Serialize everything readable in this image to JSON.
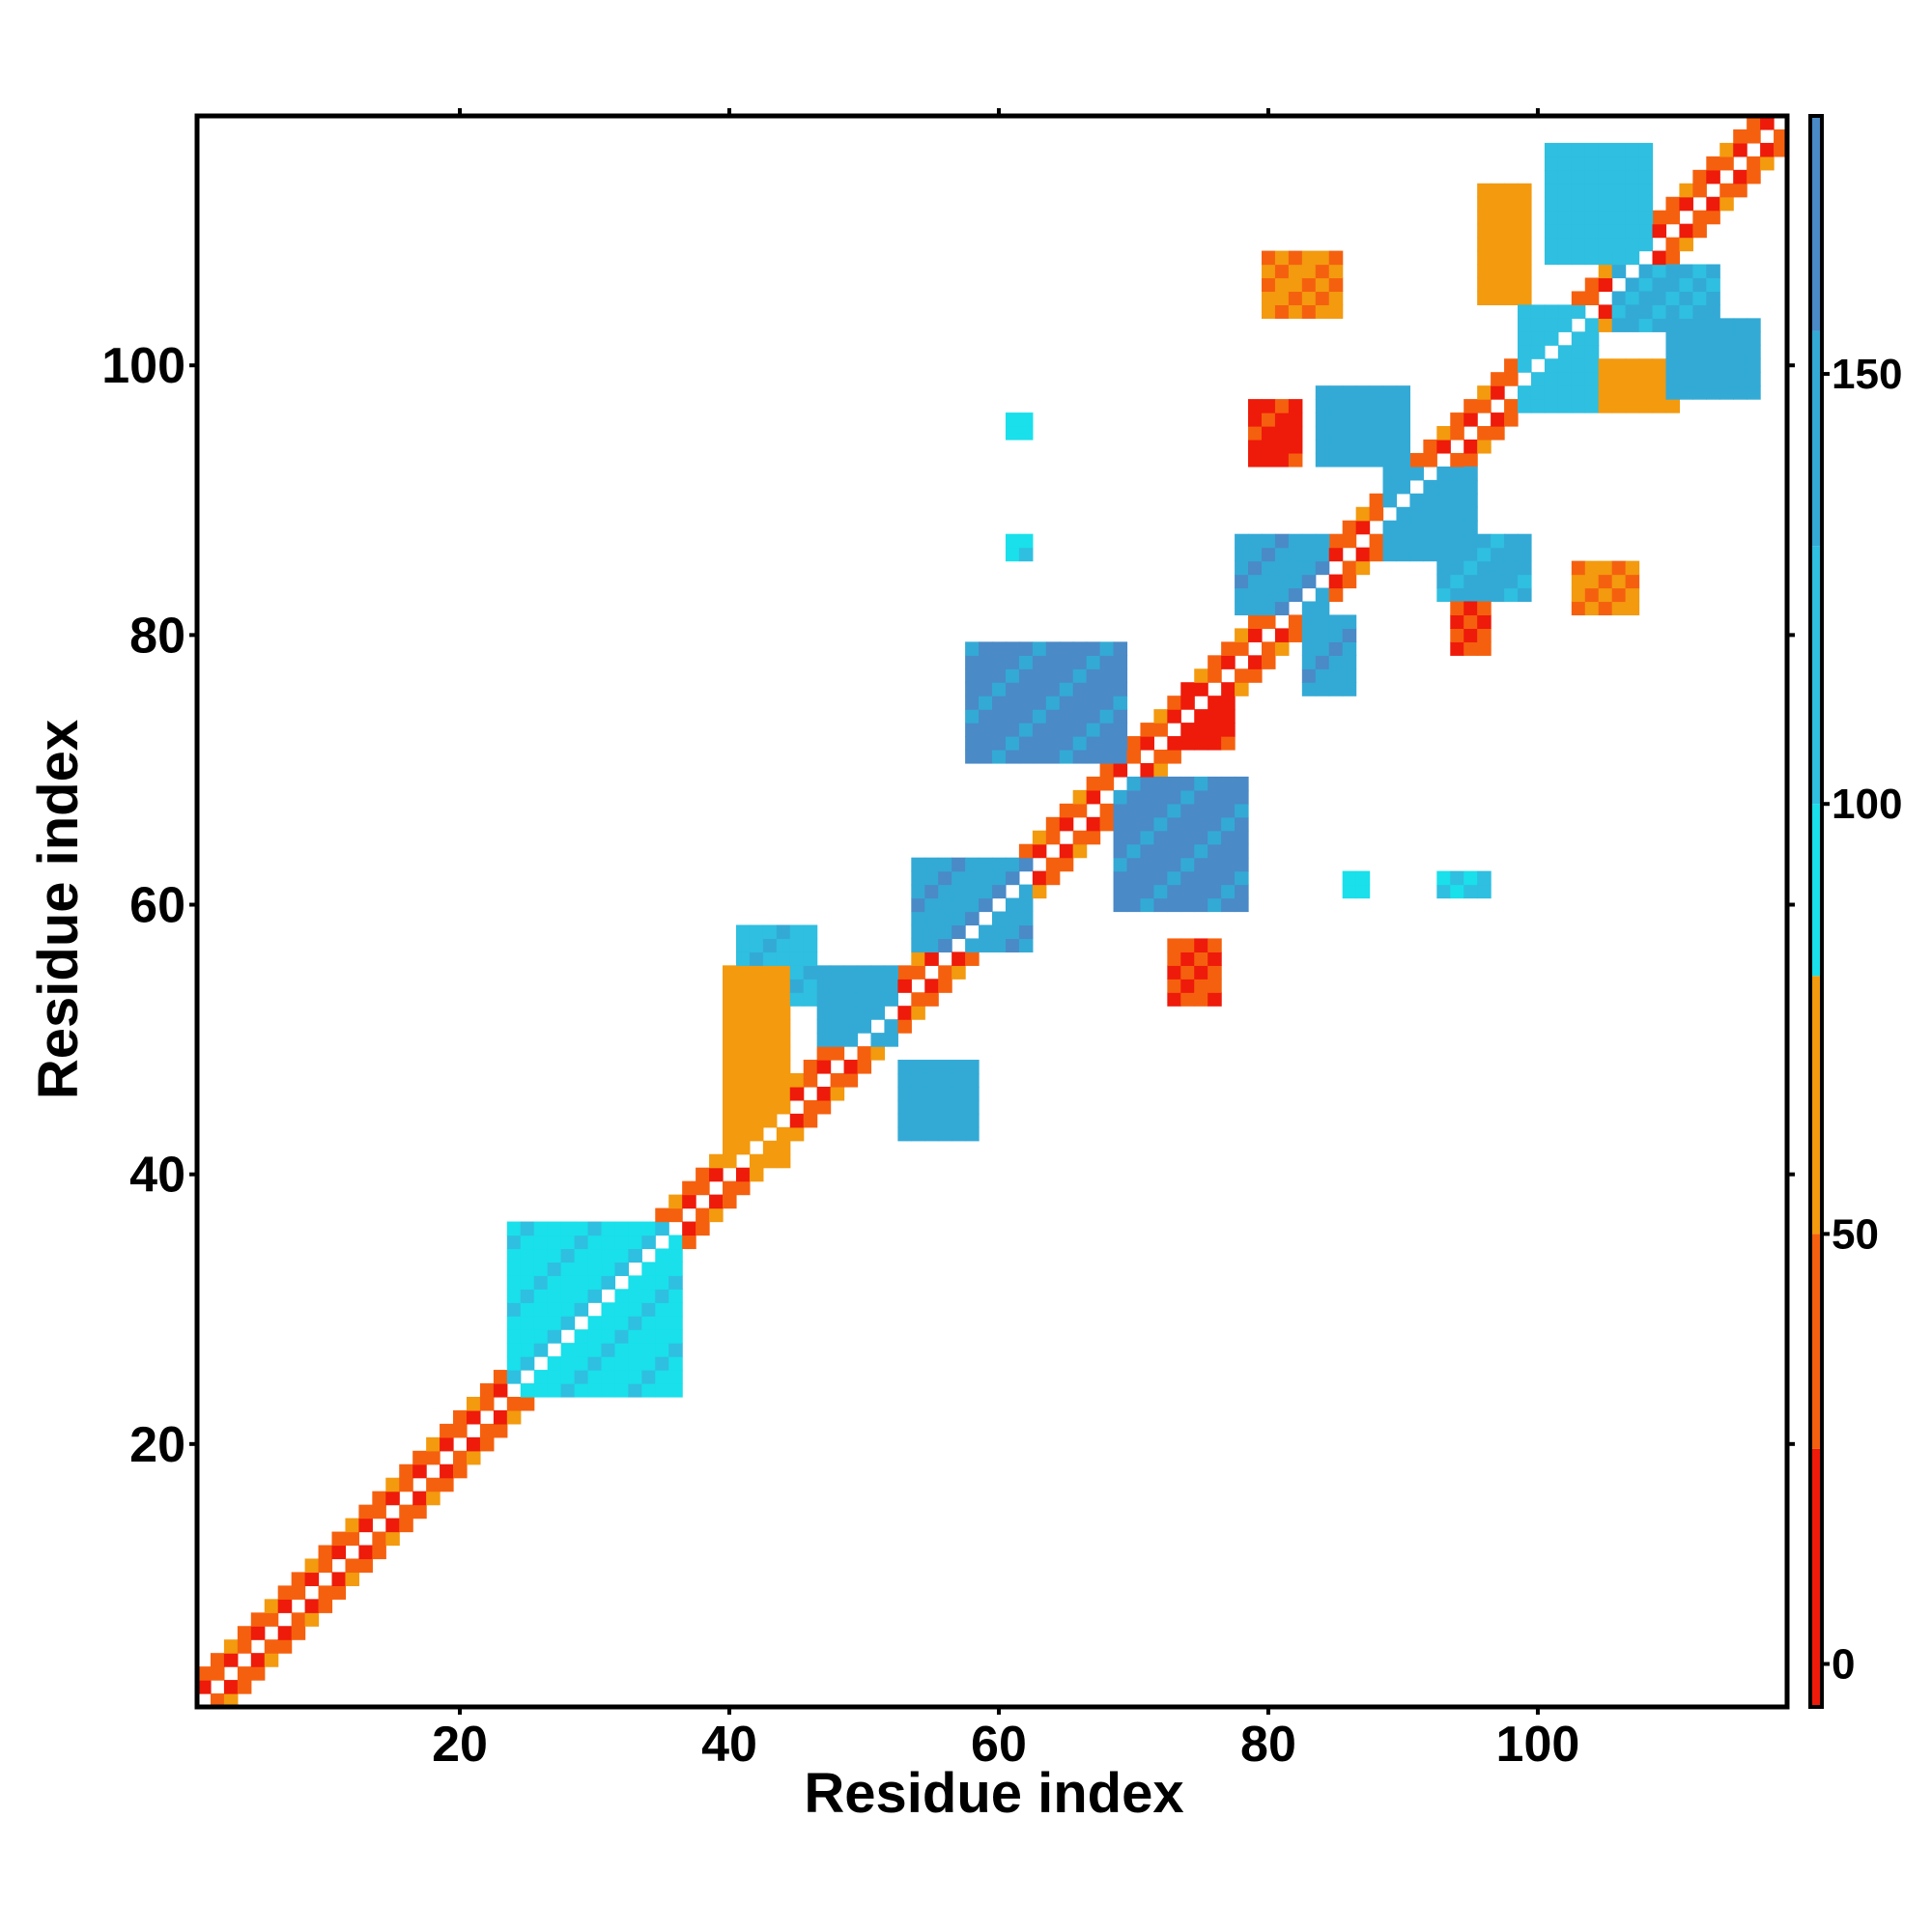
{
  "chart_data": {
    "type": "heatmap",
    "xlabel": "Residue index",
    "ylabel": "Residue index",
    "xlim": [
      1,
      118
    ],
    "ylim": [
      1,
      118
    ],
    "x_ticks": [
      20,
      40,
      60,
      80,
      100
    ],
    "y_ticks": [
      20,
      40,
      60,
      80,
      100
    ],
    "colorbar": {
      "range": [
        -5,
        180
      ],
      "ticks": [
        0,
        50,
        100,
        150
      ],
      "bands": [
        {
          "from": -5,
          "to": 25,
          "color": "#ee1a0a"
        },
        {
          "from": 25,
          "to": 50,
          "color": "#f5600f"
        },
        {
          "from": 50,
          "to": 80,
          "color": "#f39a0f"
        },
        {
          "from": 80,
          "to": 100,
          "color": "#19e0ea"
        },
        {
          "from": 100,
          "to": 130,
          "color": "#2fbfe0"
        },
        {
          "from": 130,
          "to": 155,
          "color": "#33aad6"
        },
        {
          "from": 155,
          "to": 180,
          "color": "#4a8ac7"
        }
      ]
    },
    "diagonal_cells": "self-contact (i = j) drawn white; band |i-j| = 1 and 2 mostly red/orange (values ~0-75)",
    "blocks": [
      {
        "x": [
          1,
          118
        ],
        "y_offset": [
          -2,
          2
        ],
        "value": 30,
        "note": "main diagonal band"
      },
      {
        "x": [
          24,
          36
        ],
        "y": [
          24,
          36
        ],
        "value": 95,
        "note": "helix segment cyan"
      },
      {
        "x": [
          41,
          46
        ],
        "y": [
          53,
          58
        ],
        "value": 125
      },
      {
        "x": [
          47,
          52
        ],
        "y": [
          50,
          55
        ],
        "value": 140
      },
      {
        "x": [
          53,
          58
        ],
        "y": [
          43,
          48
        ],
        "value": 140
      },
      {
        "x": [
          40,
          44
        ],
        "y": [
          41,
          55
        ],
        "value": 60
      },
      {
        "x": [
          54,
          62
        ],
        "y": [
          57,
          63
        ],
        "value": 150
      },
      {
        "x": [
          58,
          69
        ],
        "y": [
          71,
          79
        ],
        "value": 160
      },
      {
        "x": [
          69,
          78
        ],
        "y": [
          60,
          69
        ],
        "value": 160
      },
      {
        "x": [
          74,
          77
        ],
        "y": [
          72,
          76
        ],
        "value": 20
      },
      {
        "x": [
          73,
          76
        ],
        "y": [
          53,
          57
        ],
        "value": 25
      },
      {
        "x": [
          78,
          84
        ],
        "y": [
          82,
          87
        ],
        "value": 150
      },
      {
        "x": [
          83,
          86
        ],
        "y": [
          76,
          81
        ],
        "value": 150
      },
      {
        "x": [
          84,
          90
        ],
        "y": [
          93,
          98
        ],
        "value": 145
      },
      {
        "x": [
          89,
          95
        ],
        "y": [
          86,
          92
        ],
        "value": 140
      },
      {
        "x": [
          93,
          99
        ],
        "y": [
          83,
          87
        ],
        "value": 135
      },
      {
        "x": [
          79,
          82
        ],
        "y": [
          93,
          97
        ],
        "value": 20
      },
      {
        "x": [
          80,
          85
        ],
        "y": [
          104,
          108
        ],
        "value": 50
      },
      {
        "x": [
          96,
          99
        ],
        "y": [
          105,
          113
        ],
        "value": 60
      },
      {
        "x": [
          99,
          104
        ],
        "y": [
          97,
          104
        ],
        "value": 120
      },
      {
        "x": [
          101,
          108
        ],
        "y": [
          108,
          116
        ],
        "value": 120
      },
      {
        "x": [
          106,
          113
        ],
        "y": [
          103,
          107
        ],
        "value": 130
      },
      {
        "x": [
          105,
          110
        ],
        "y": [
          97,
          100
        ],
        "value": 60
      },
      {
        "x": [
          110,
          116
        ],
        "y": [
          98,
          103
        ],
        "value": 140
      },
      {
        "x": [
          103,
          107
        ],
        "y": [
          82,
          85
        ],
        "value": 50
      },
      {
        "x": [
          94,
          96
        ],
        "y": [
          79,
          82
        ],
        "value": 25
      },
      {
        "x": [
          61,
          62
        ],
        "y": [
          95,
          96
        ],
        "value": 95
      },
      {
        "x": [
          61,
          62
        ],
        "y": [
          86,
          87
        ],
        "value": 95
      },
      {
        "x": [
          86,
          87
        ],
        "y": [
          61,
          62
        ],
        "value": 95
      },
      {
        "x": [
          93,
          96
        ],
        "y": [
          61,
          62
        ],
        "value": 100
      }
    ]
  }
}
